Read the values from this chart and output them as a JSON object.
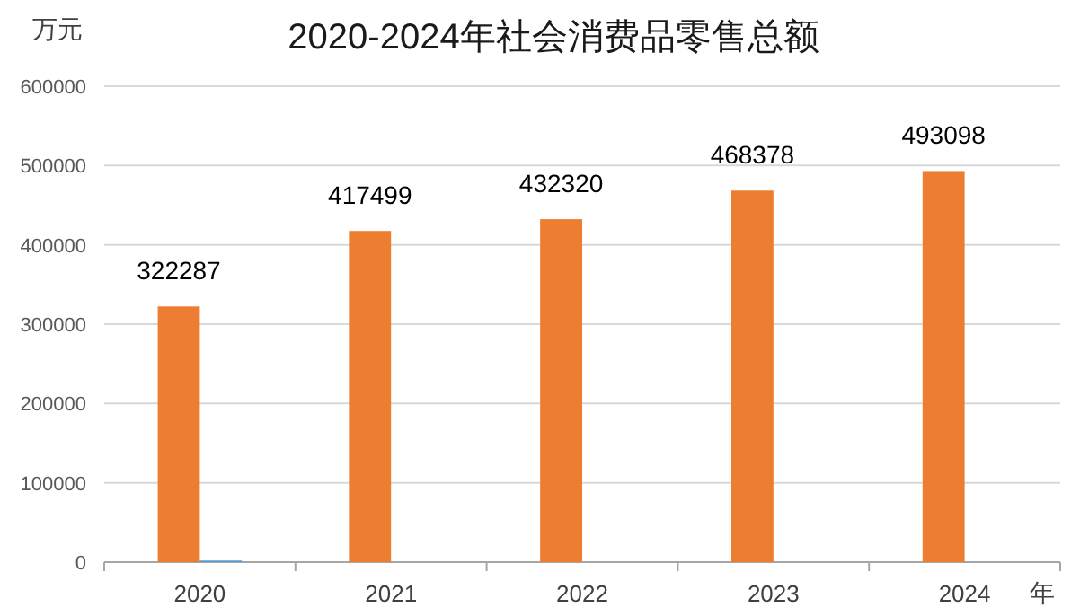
{
  "chart_data": {
    "type": "bar",
    "title": "2020-2024年社会消费品零售总额",
    "ylabel": "万元",
    "xlabel": "年",
    "categories": [
      "2020",
      "2021",
      "2022",
      "2023",
      "2024"
    ],
    "series": [
      {
        "color": "#ed7d31",
        "values": [
          322287,
          417499,
          432320,
          468378,
          493098
        ],
        "value_labels": [
          "322287",
          "417499",
          "432320",
          "468378",
          "493098"
        ]
      },
      {
        "color": "#5b9bd5",
        "values": [
          2000,
          null,
          null,
          null,
          null
        ]
      }
    ],
    "ylim": [
      0,
      600000
    ],
    "yticks": [
      0,
      100000,
      200000,
      300000,
      400000,
      500000,
      600000
    ],
    "grid": "y"
  }
}
